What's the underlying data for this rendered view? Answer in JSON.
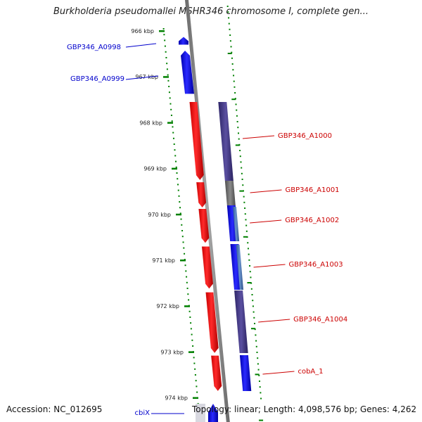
{
  "title": "Burkholderia pseudomallei MSHR346 chromosome I, complete gen...",
  "footer": {
    "accession": "Accession: NC_012695",
    "info": "Topology: linear; Length: 4,098,576 bp; Genes: 4,262"
  },
  "colors": {
    "forward": "#ff0000",
    "reverse": "#0000ff",
    "forward_label": "#cc0000",
    "reverse_label": "#0000cc",
    "backbone": "#808080",
    "ruler": "#008000",
    "dark": "#4a3f8a",
    "gray": "#707070",
    "steel": "#4a70b0"
  },
  "chart_data": {
    "type": "genome-map",
    "title": "Burkholderia pseudomallei MSHR346 chromosome I, complete gen...",
    "axis_unit": "kbp",
    "ticks": [
      {
        "kbp": 966,
        "label": "966 kbp"
      },
      {
        "kbp": 967,
        "label": "967 kbp"
      },
      {
        "kbp": 968,
        "label": "968 kbp"
      },
      {
        "kbp": 969,
        "label": "969 kbp"
      },
      {
        "kbp": 970,
        "label": "970 kbp"
      },
      {
        "kbp": 971,
        "label": "971 kbp"
      },
      {
        "kbp": 972,
        "label": "972 kbp"
      },
      {
        "kbp": 973,
        "label": "973 kbp"
      },
      {
        "kbp": 974,
        "label": "974 kbp"
      }
    ],
    "genes": [
      {
        "label": "GBP346_A0998",
        "strand": "reverse",
        "start_kbp": 966.13,
        "end_kbp": 966.3
      },
      {
        "label": "GBP346_A0999",
        "strand": "reverse",
        "start_kbp": 966.43,
        "end_kbp": 967.37
      },
      {
        "label": "GBP346_A1000",
        "strand": "forward",
        "start_kbp": 967.55,
        "end_kbp": 969.25
      },
      {
        "label": "GBP346_A1001",
        "strand": "forward",
        "start_kbp": 969.3,
        "end_kbp": 969.85
      },
      {
        "label": "GBP346_A1002",
        "strand": "forward",
        "start_kbp": 969.88,
        "end_kbp": 970.62
      },
      {
        "label": "GBP346_A1003",
        "strand": "forward",
        "start_kbp": 970.7,
        "end_kbp": 971.62
      },
      {
        "label": "GBP346_A1004",
        "strand": "forward",
        "start_kbp": 971.7,
        "end_kbp": 973.02
      },
      {
        "label": "cobA_1",
        "strand": "forward",
        "start_kbp": 973.08,
        "end_kbp": 973.85
      },
      {
        "label": "cbiX",
        "strand": "reverse",
        "start_kbp": 974.1,
        "end_kbp": 974.4
      }
    ]
  }
}
